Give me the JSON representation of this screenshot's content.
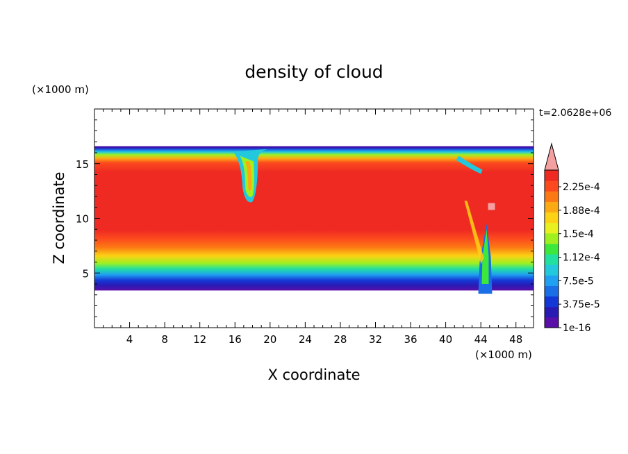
{
  "chart_data": {
    "type": "heatmap",
    "title": "density of cloud",
    "xlabel": "X coordinate",
    "ylabel": "Z coordinate",
    "x_unit": "(×1000 m)",
    "y_unit": "(×1000 m)",
    "time_label": "t=2.0628e+06",
    "xlim": [
      0,
      50
    ],
    "ylim": [
      0,
      20
    ],
    "x_ticks": [
      4,
      8,
      12,
      16,
      20,
      24,
      28,
      32,
      36,
      40,
      44,
      48
    ],
    "y_ticks": [
      5,
      10,
      15
    ],
    "colorbar": {
      "labels": [
        "2.25e-4",
        "1.88e-4",
        "1.5e-4",
        "1.12e-4",
        "7.5e-5",
        "3.75e-5",
        "1e-16"
      ],
      "colors": [
        "#5a0fa8",
        "#2a1ab4",
        "#1438d6",
        "#1a6ee6",
        "#1fa0f0",
        "#22c8dc",
        "#22e0a0",
        "#3ce83c",
        "#a0f020",
        "#e8f020",
        "#fcd214",
        "#fcaa14",
        "#fc7814",
        "#fc4a1e",
        "#ee2a22"
      ],
      "extend_color": "#f5a0a0"
    },
    "cloud_layer": {
      "base_km": 3.4,
      "top_km": 16.6,
      "core_value": "2.25e-4",
      "features": [
        {
          "type": "downdraft",
          "x_km": 17.5,
          "bottom_km": 11.5
        },
        {
          "type": "updraft",
          "x_km": 44.5,
          "bottom_km": 3.1
        }
      ]
    }
  }
}
